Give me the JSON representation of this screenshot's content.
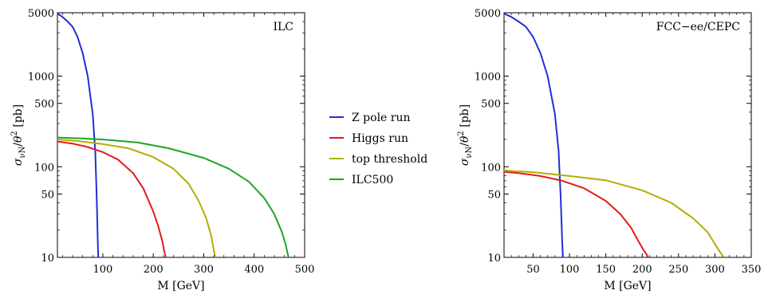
{
  "chart_data": [
    {
      "type": "line",
      "annotation": "ILC",
      "xlabel": "M [GeV]",
      "ylabel": "σ_{νN}/θ² [pb]",
      "xlim": [
        10,
        500
      ],
      "ylim": [
        10,
        5000
      ],
      "yscale": "log",
      "xticks": [
        100,
        200,
        300,
        400,
        500
      ],
      "yticks": [
        10,
        50,
        100,
        500,
        1000,
        5000
      ],
      "grid": false,
      "series": [
        {
          "name": "Z pole run",
          "color": "#1f2fd6",
          "x": [
            10,
            20,
            30,
            40,
            50,
            60,
            70,
            80,
            85,
            88,
            90,
            91
          ],
          "y": [
            4900,
            4500,
            4000,
            3500,
            2700,
            1800,
            1000,
            380,
            150,
            45,
            15,
            10
          ]
        },
        {
          "name": "Higgs run",
          "color": "#e31a1c",
          "x": [
            10,
            40,
            70,
            100,
            130,
            160,
            180,
            200,
            210,
            218,
            222,
            225
          ],
          "y": [
            190,
            180,
            165,
            145,
            120,
            85,
            58,
            32,
            22,
            15,
            11.5,
            10
          ]
        },
        {
          "name": "top threshold",
          "color": "#b5ad00",
          "x": [
            10,
            50,
            100,
            150,
            200,
            240,
            270,
            290,
            305,
            315,
            320,
            323
          ],
          "y": [
            200,
            192,
            178,
            160,
            128,
            95,
            65,
            42,
            27,
            17,
            12,
            10
          ]
        },
        {
          "name": "ILC500",
          "color": "#1fa51f",
          "x": [
            10,
            60,
            100,
            170,
            230,
            300,
            350,
            390,
            420,
            440,
            455,
            462,
            468
          ],
          "y": [
            210,
            205,
            200,
            185,
            160,
            125,
            95,
            68,
            45,
            30,
            19,
            14,
            10
          ]
        }
      ]
    },
    {
      "type": "line",
      "annotation": "FCC−ee/CEPC",
      "xlabel": "M [GeV]",
      "ylabel": "σ_{νN}/θ² [pb]",
      "xlim": [
        10,
        350
      ],
      "ylim": [
        10,
        5000
      ],
      "yscale": "log",
      "xticks": [
        50,
        100,
        150,
        200,
        250,
        300,
        350
      ],
      "yticks": [
        10,
        50,
        100,
        500,
        1000,
        5000
      ],
      "grid": false,
      "series": [
        {
          "name": "Z pole run",
          "color": "#1f2fd6",
          "x": [
            10,
            20,
            30,
            40,
            50,
            60,
            70,
            80,
            85,
            88,
            90,
            91
          ],
          "y": [
            4900,
            4500,
            4000,
            3500,
            2700,
            1800,
            1000,
            380,
            150,
            45,
            15,
            10
          ]
        },
        {
          "name": "Higgs run",
          "color": "#e31a1c",
          "x": [
            10,
            30,
            60,
            90,
            120,
            150,
            170,
            185,
            195,
            202,
            206,
            208
          ],
          "y": [
            88,
            85,
            79,
            70,
            58,
            42,
            30,
            21,
            15,
            12,
            10.8,
            10
          ]
        },
        {
          "name": "top threshold",
          "color": "#b5ad00",
          "x": [
            10,
            50,
            100,
            150,
            200,
            240,
            270,
            290,
            300,
            307,
            312
          ],
          "y": [
            91,
            87,
            79,
            71,
            55,
            40,
            27,
            19,
            14,
            11.5,
            10
          ]
        }
      ]
    }
  ],
  "legend": {
    "placement": "between panels",
    "items": [
      {
        "label": "Z pole run",
        "color": "#1f2fd6"
      },
      {
        "label": "Higgs run",
        "color": "#e31a1c"
      },
      {
        "label": "top threshold",
        "color": "#b5ad00"
      },
      {
        "label": "ILC500",
        "color": "#1fa51f"
      }
    ]
  }
}
